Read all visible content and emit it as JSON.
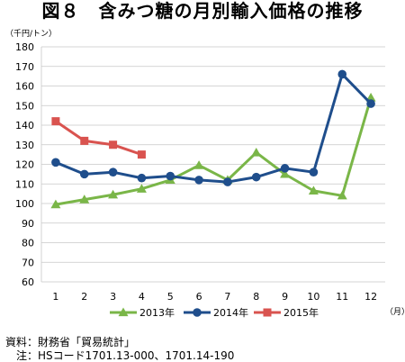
{
  "chart_data": {
    "type": "line",
    "title": "図８　含みつ糖の月別輸入価格の推移",
    "ylabel": "（千円/トン）",
    "xlabel": "（月）",
    "ylim": [
      60,
      180
    ],
    "ytick_step": 10,
    "grid": true,
    "legend_position": "bottom",
    "categories": [
      "1",
      "2",
      "3",
      "4",
      "5",
      "6",
      "7",
      "8",
      "9",
      "10",
      "11",
      "12"
    ],
    "series": [
      {
        "name": "2013年",
        "color": "#7ab648",
        "marker": "triangle",
        "values": [
          99.5,
          102,
          104.5,
          107.5,
          112,
          119.5,
          112,
          126,
          115,
          106.5,
          104,
          154
        ]
      },
      {
        "name": "2014年",
        "color": "#1f4e8c",
        "marker": "circle",
        "values": [
          121,
          115,
          116,
          113,
          114,
          112,
          111,
          113.5,
          118,
          116,
          166,
          151
        ]
      },
      {
        "name": "2015年",
        "color": "#d9534f",
        "marker": "square",
        "values": [
          142,
          132,
          130,
          125,
          null,
          null,
          null,
          null,
          null,
          null,
          null,
          null
        ]
      }
    ]
  },
  "footnotes": {
    "source": "資料：財務省「貿易統計」",
    "note": "　注：HSコード1701.13-000、1701.14-190"
  }
}
